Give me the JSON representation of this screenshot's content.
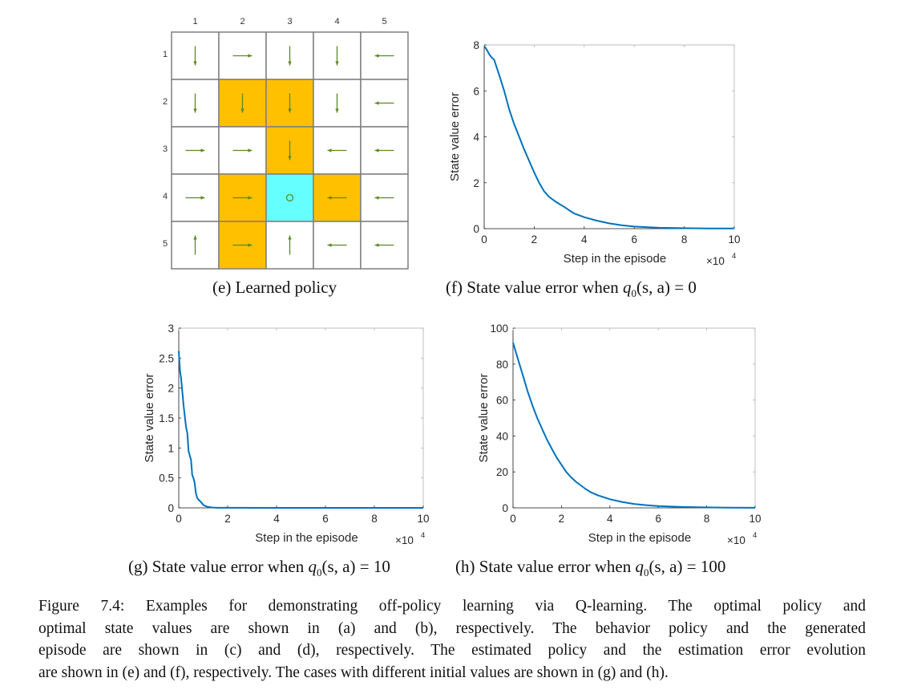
{
  "grid_policy": {
    "col_labels": [
      "1",
      "2",
      "3",
      "4",
      "5"
    ],
    "row_labels": [
      "1",
      "2",
      "3",
      "4",
      "5"
    ],
    "colors": {
      "forbidden": "#ffc000",
      "target": "#66ffff",
      "free": "#ffffff",
      "arrow": "#5a8a1e",
      "border": "#7f7f7f"
    },
    "cells": [
      [
        "free",
        "free",
        "free",
        "free",
        "free"
      ],
      [
        "free",
        "forbidden",
        "forbidden",
        "free",
        "free"
      ],
      [
        "free",
        "free",
        "forbidden",
        "free",
        "free"
      ],
      [
        "free",
        "forbidden",
        "target",
        "forbidden",
        "free"
      ],
      [
        "free",
        "forbidden",
        "free",
        "free",
        "free"
      ]
    ],
    "actions": [
      [
        "down",
        "right",
        "down",
        "down",
        "left"
      ],
      [
        "down",
        "down",
        "down",
        "down",
        "left"
      ],
      [
        "right",
        "right",
        "down",
        "left",
        "left"
      ],
      [
        "right",
        "right",
        "stay",
        "left",
        "left"
      ],
      [
        "up",
        "right",
        "up",
        "left",
        "left"
      ]
    ],
    "caption": "(e) Learned policy"
  },
  "captions": {
    "f_prefix": "(f) State value error when ",
    "f_value": "0",
    "g_prefix": "(g) State value error when ",
    "g_value": "10",
    "h_prefix": "(h) State value error when ",
    "h_value": "100",
    "q_symbol": "q",
    "q_sub": "0",
    "q_args": "(s, a) = "
  },
  "figure_caption": {
    "lines": [
      "Figure 7.4: Examples for demonstrating off-policy learning via Q-learning. The optimal policy and",
      "optimal state values are shown in (a) and (b), respectively. The behavior policy and the generated",
      "episode are shown in (c) and (d), respectively. The estimated policy and the estimation error evolution",
      "are shown in (e) and (f), respectively. The cases with different initial values are shown in (g) and (h)."
    ]
  },
  "chart_data": [
    {
      "id": "f",
      "type": "line",
      "title": "",
      "xlabel": "Step in the episode",
      "ylabel": "State value error",
      "x_multiplier_label": "×10",
      "x_multiplier_exp": "4",
      "xlim": [
        0,
        10
      ],
      "ylim": [
        0,
        8
      ],
      "xticks": [
        0,
        2,
        4,
        6,
        8,
        10
      ],
      "yticks": [
        0,
        2,
        4,
        6,
        8
      ],
      "ytick_labels": [
        "0",
        "2",
        "4",
        "6",
        "8"
      ],
      "grid": false,
      "color": "#0072bd",
      "series": [
        {
          "name": "q0=0",
          "x": [
            0,
            0.1,
            0.2,
            0.3,
            0.4,
            0.6,
            0.8,
            1.0,
            1.2,
            1.4,
            1.6,
            1.8,
            2.0,
            2.2,
            2.4,
            2.6,
            2.8,
            3.0,
            3.2,
            3.4,
            3.6,
            4.0,
            4.5,
            5.0,
            5.5,
            6.0,
            7.0,
            8.0,
            9.0,
            10.0
          ],
          "y": [
            7.95,
            7.8,
            7.6,
            7.45,
            7.35,
            6.7,
            6.0,
            5.2,
            4.55,
            4.0,
            3.45,
            2.95,
            2.45,
            2.0,
            1.62,
            1.38,
            1.22,
            1.08,
            0.95,
            0.8,
            0.66,
            0.5,
            0.35,
            0.23,
            0.15,
            0.09,
            0.04,
            0.02,
            0.01,
            0.01
          ]
        }
      ]
    },
    {
      "id": "g",
      "type": "line",
      "title": "",
      "xlabel": "Step in the episode",
      "ylabel": "State value error",
      "x_multiplier_label": "×10",
      "x_multiplier_exp": "4",
      "xlim": [
        0,
        10
      ],
      "ylim": [
        0,
        3
      ],
      "xticks": [
        0,
        2,
        4,
        6,
        8,
        10
      ],
      "yticks": [
        0,
        0.5,
        1,
        1.5,
        2,
        2.5,
        3
      ],
      "ytick_labels": [
        "0",
        "0.5",
        "1",
        "1.5",
        "2",
        "2.5",
        "3"
      ],
      "grid": false,
      "color": "#0072bd",
      "series": [
        {
          "name": "q0=10",
          "x": [
            0,
            0.05,
            0.1,
            0.2,
            0.3,
            0.35,
            0.4,
            0.5,
            0.55,
            0.6,
            0.65,
            0.7,
            0.75,
            0.8,
            0.9,
            1.0,
            1.1,
            1.2,
            1.4,
            1.6,
            2.0,
            4.0,
            6.0,
            8.0,
            10.0
          ],
          "y": [
            2.62,
            2.3,
            2.15,
            1.7,
            1.35,
            1.25,
            0.95,
            0.8,
            0.55,
            0.5,
            0.42,
            0.25,
            0.17,
            0.14,
            0.1,
            0.05,
            0.03,
            0.015,
            0.005,
            0.002,
            0.001,
            0.0,
            0.0,
            0.0,
            0.0
          ]
        }
      ]
    },
    {
      "id": "h",
      "type": "line",
      "title": "",
      "xlabel": "Step in the episode",
      "ylabel": "State value error",
      "x_multiplier_label": "×10",
      "x_multiplier_exp": "4",
      "xlim": [
        0,
        10
      ],
      "ylim": [
        0,
        100
      ],
      "xticks": [
        0,
        2,
        4,
        6,
        8,
        10
      ],
      "yticks": [
        0,
        20,
        40,
        60,
        80,
        100
      ],
      "ytick_labels": [
        "0",
        "20",
        "40",
        "60",
        "80",
        "100"
      ],
      "grid": false,
      "color": "#0072bd",
      "series": [
        {
          "name": "q0=100",
          "x": [
            0,
            0.2,
            0.4,
            0.6,
            0.8,
            1.0,
            1.2,
            1.4,
            1.6,
            1.8,
            2.0,
            2.2,
            2.4,
            2.6,
            2.8,
            3.0,
            3.2,
            3.5,
            4.0,
            4.5,
            5.0,
            5.5,
            6.0,
            7.0,
            8.0,
            9.0,
            10.0
          ],
          "y": [
            92,
            83,
            74,
            65,
            57,
            50,
            44,
            38,
            33,
            28,
            24,
            20,
            17,
            14.5,
            12.5,
            10.5,
            8.8,
            7,
            4.8,
            3.3,
            2.2,
            1.5,
            1.0,
            0.5,
            0.25,
            0.1,
            0.05
          ]
        }
      ]
    }
  ]
}
